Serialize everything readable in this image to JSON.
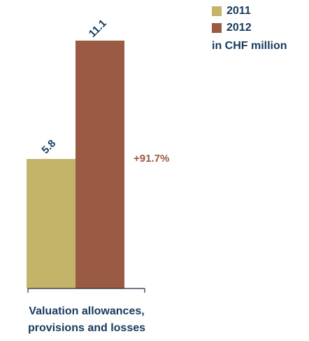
{
  "chart_data": {
    "type": "bar",
    "categories": [
      "Valuation allowances, provisions and losses"
    ],
    "category_lines": [
      "Valuation allowances,",
      "provisions and losses"
    ],
    "series": [
      {
        "name": "2011",
        "values": [
          5.8
        ],
        "label": "5.8",
        "color": "#c4b46a"
      },
      {
        "name": "2012",
        "values": [
          11.1
        ],
        "label": "11.1",
        "color": "#9b5a43"
      }
    ],
    "annotation": {
      "text": "+91.7%",
      "color": "#9b5a43"
    },
    "unit": "in CHF million",
    "ylim": [
      0,
      11.1
    ]
  },
  "colors": {
    "text": "#173a5e",
    "axis": "#1d2d3d"
  }
}
